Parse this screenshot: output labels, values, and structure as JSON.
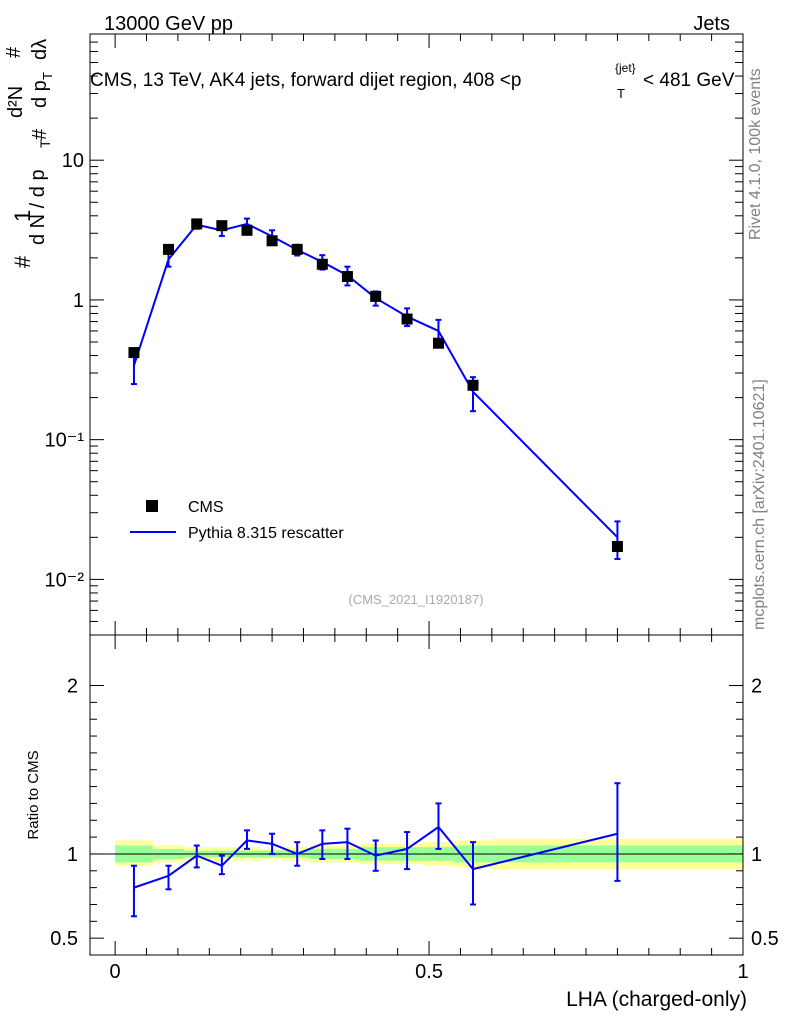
{
  "header": {
    "left": "13000 GeV pp",
    "right": "Jets"
  },
  "title": {
    "main": "CMS, 13 TeV, AK4 jets, forward dijet region, 408 <p",
    "sub": "T",
    "sup": "{jet}",
    "tail": "< 481 GeV"
  },
  "side_labels": {
    "rivet": "Rivet 4.1.0,  100k events",
    "mcplots": "mcplots.cern.ch [arXiv:2401.10621]"
  },
  "watermark": "(CMS_2021_I1920187)",
  "ylabel_main": {
    "hash": "#",
    "one": "1",
    "dn": "d N / d p",
    "t": "T",
    "frac_num_hash": "#",
    "frac_d2n": "d²N",
    "frac_den": "d p",
    "frac_den_t": "T",
    "frac_dl": "dλ"
  },
  "ylabel_ratio": "Ratio to CMS",
  "xlabel": "LHA (charged-only)",
  "legend": {
    "data_label": "CMS",
    "mc_label": "Pythia 8.315 rescatter"
  },
  "colors": {
    "data": "#000000",
    "mc": "#0000ff",
    "band_inner": "#99ff99",
    "band_outer": "#ffff99"
  },
  "chart_data": [
    {
      "type": "scatter",
      "name": "main",
      "yscale": "log",
      "ylim": [
        0.004,
        80
      ],
      "xlim": [
        -0.04,
        1.0
      ],
      "y_ticks": [
        "10⁻²",
        "10⁻¹",
        "1",
        "10"
      ],
      "y_tick_values": [
        0.01,
        0.1,
        1,
        10
      ],
      "series": [
        {
          "name": "CMS",
          "x": [
            0.03,
            0.085,
            0.13,
            0.17,
            0.21,
            0.25,
            0.29,
            0.33,
            0.37,
            0.415,
            0.465,
            0.515,
            0.57,
            0.8
          ],
          "y": [
            0.42,
            2.3,
            3.5,
            3.4,
            3.15,
            2.65,
            2.3,
            1.8,
            1.47,
            1.06,
            0.73,
            0.49,
            0.245,
            0.0172
          ]
        },
        {
          "name": "Pythia 8.315 rescatter",
          "x": [
            0.03,
            0.085,
            0.13,
            0.17,
            0.21,
            0.25,
            0.29,
            0.33,
            0.37,
            0.415,
            0.465,
            0.515,
            0.57,
            0.8
          ],
          "y": [
            0.34,
            1.95,
            3.45,
            3.15,
            3.5,
            2.85,
            2.28,
            1.87,
            1.5,
            1.03,
            0.76,
            0.6,
            0.22,
            0.02
          ],
          "yerr": [
            0.09,
            0.22,
            0.22,
            0.28,
            0.32,
            0.3,
            0.2,
            0.22,
            0.23,
            0.12,
            0.11,
            0.12,
            0.06,
            0.006
          ]
        }
      ]
    },
    {
      "type": "line",
      "name": "ratio",
      "ylim": [
        0.4,
        2.3
      ],
      "xlim": [
        -0.04,
        1.0
      ],
      "x_ticks": [
        "0",
        "0.5",
        "1"
      ],
      "x_tick_values": [
        0,
        0.5,
        1
      ],
      "y_ticks": [
        "0.5",
        "1",
        "2"
      ],
      "y_tick_values": [
        0.5,
        1,
        2
      ],
      "series": [
        {
          "name": "Pythia 8.315 rescatter / CMS",
          "x": [
            0.03,
            0.085,
            0.13,
            0.17,
            0.21,
            0.25,
            0.29,
            0.33,
            0.37,
            0.415,
            0.465,
            0.515,
            0.57,
            0.8
          ],
          "y": [
            0.8,
            0.87,
            0.99,
            0.93,
            1.08,
            1.06,
            1.0,
            1.06,
            1.07,
            0.99,
            1.03,
            1.16,
            0.91,
            1.12
          ],
          "ylo": [
            0.63,
            0.79,
            0.92,
            0.88,
            1.03,
            1.0,
            0.93,
            0.97,
            0.97,
            0.9,
            0.91,
            1.03,
            0.7,
            0.84
          ],
          "yhi": [
            0.93,
            0.93,
            1.05,
            0.99,
            1.14,
            1.12,
            1.07,
            1.14,
            1.15,
            1.08,
            1.13,
            1.3,
            1.07,
            1.42
          ]
        }
      ],
      "bands": {
        "edges": [
          0.0,
          0.06,
          0.11,
          0.15,
          0.19,
          0.23,
          0.27,
          0.31,
          0.35,
          0.39,
          0.44,
          0.49,
          0.54,
          0.6,
          1.0
        ],
        "inner": [
          [
            0.95,
            1.05
          ],
          [
            0.97,
            1.03
          ],
          [
            0.98,
            1.02
          ],
          [
            0.98,
            1.02
          ],
          [
            0.98,
            1.02
          ],
          [
            0.98,
            1.02
          ],
          [
            0.98,
            1.02
          ],
          [
            0.97,
            1.03
          ],
          [
            0.97,
            1.03
          ],
          [
            0.96,
            1.04
          ],
          [
            0.96,
            1.04
          ],
          [
            0.96,
            1.04
          ],
          [
            0.95,
            1.05
          ],
          [
            0.95,
            1.05
          ]
        ],
        "outer": [
          [
            0.93,
            1.08
          ],
          [
            0.95,
            1.05
          ],
          [
            0.96,
            1.04
          ],
          [
            0.96,
            1.04
          ],
          [
            0.96,
            1.04
          ],
          [
            0.97,
            1.03
          ],
          [
            0.96,
            1.04
          ],
          [
            0.95,
            1.05
          ],
          [
            0.95,
            1.05
          ],
          [
            0.94,
            1.06
          ],
          [
            0.94,
            1.06
          ],
          [
            0.93,
            1.07
          ],
          [
            0.92,
            1.08
          ],
          [
            0.91,
            1.09
          ]
        ]
      }
    }
  ]
}
